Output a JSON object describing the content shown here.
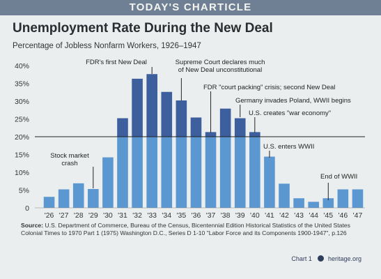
{
  "banner": "TODAY'S CHARTICLE",
  "chart_data": {
    "type": "bar",
    "title": "Unemployment Rate During the New Deal",
    "subtitle": "Percentage of Jobless Nonfarm Workers, 1926–1947",
    "categories": [
      "'26",
      "'27",
      "'28",
      "'29",
      "'30",
      "'31",
      "'32",
      "'33",
      "'34",
      "'35",
      "'36",
      "'37",
      "'38",
      "'39",
      "'40",
      "'41",
      "'42",
      "'43",
      "'44",
      "'45",
      "'46",
      "'47"
    ],
    "values": [
      3.1,
      5.2,
      6.9,
      5.3,
      14.2,
      25.2,
      36.3,
      37.6,
      32.6,
      30.2,
      25.4,
      21.3,
      27.9,
      25.2,
      21.3,
      14.4,
      6.8,
      2.7,
      1.7,
      2.7,
      5.2,
      5.2
    ],
    "ylim": [
      0,
      40
    ],
    "yticks": [
      0,
      5,
      10,
      15,
      20,
      25,
      30,
      35,
      40
    ],
    "ytick_labels": [
      "0",
      "5%",
      "10%",
      "15%",
      "20%",
      "25%",
      "30%",
      "35%",
      "40%"
    ],
    "reference_line": 20,
    "colors": {
      "above": "#3d5f9e",
      "below": "#5b97d1",
      "reference": "#222222"
    },
    "annotations": [
      {
        "lines": [
          "Stock market",
          "crash"
        ],
        "index": 3
      },
      {
        "lines": [
          "FDR's first New Deal"
        ],
        "index": 7
      },
      {
        "lines": [
          "Supreme Court declares much",
          "of New Deal unconstitutional"
        ],
        "index": 9
      },
      {
        "lines": [
          "FDR \"court packing\" crisis; second New Deal"
        ],
        "index": 11
      },
      {
        "lines": [
          "Germany invades Poland, WWII begins"
        ],
        "index": 13
      },
      {
        "lines": [
          "U.S. creates \"war economy\""
        ],
        "index": 14
      },
      {
        "lines": [
          "U.S. enters WWII"
        ],
        "index": 15
      },
      {
        "lines": [
          "End of WWII"
        ],
        "index": 19
      }
    ]
  },
  "source": {
    "label": "Source:",
    "text": "U.S. Department of Commerce, Bureau of the Census, Bicentennial Edition Historical Statistics of the United States Colonial Times to 1970 Part 1 (1975) Washington D.C., Series D 1-10 \"Labor Force and its Components 1900-1947\", p.126"
  },
  "footer": {
    "chart_label": "Chart 1",
    "site": "heritage.org"
  }
}
